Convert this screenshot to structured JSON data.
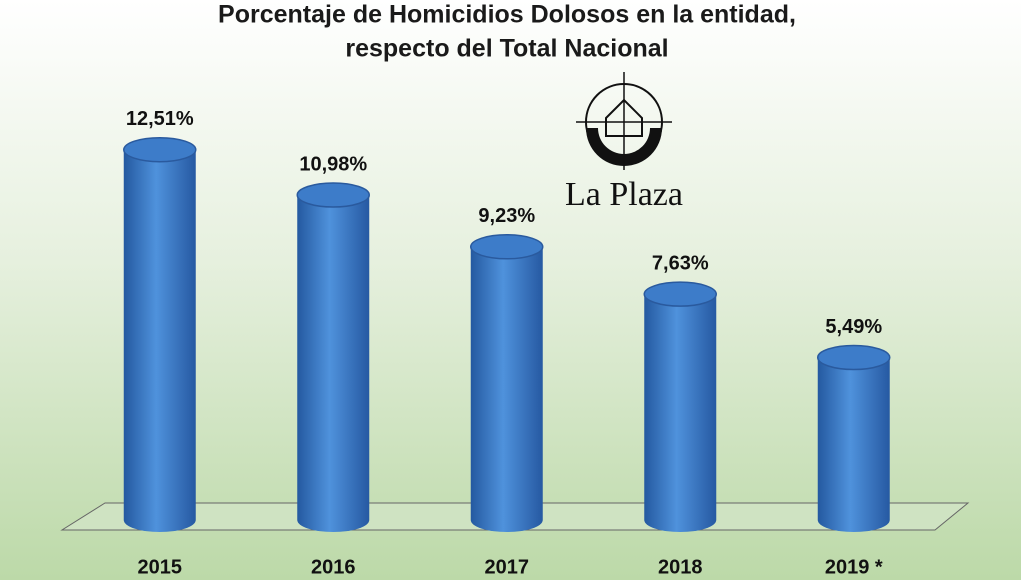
{
  "chart_data": {
    "type": "bar",
    "title": "Porcentaje de Homicidios Dolosos en la entidad,",
    "subtitle": "respecto del Total Nacional",
    "categories": [
      "2015",
      "2016",
      "2017",
      "2018",
      "2019 *"
    ],
    "values": [
      12.51,
      10.98,
      9.23,
      7.63,
      5.49
    ],
    "value_labels": [
      "12,51%",
      "10,98%",
      "9,23%",
      "7,63%",
      "5,49%"
    ],
    "color": "#3d7cc9",
    "logo_text": "La Plaza"
  }
}
